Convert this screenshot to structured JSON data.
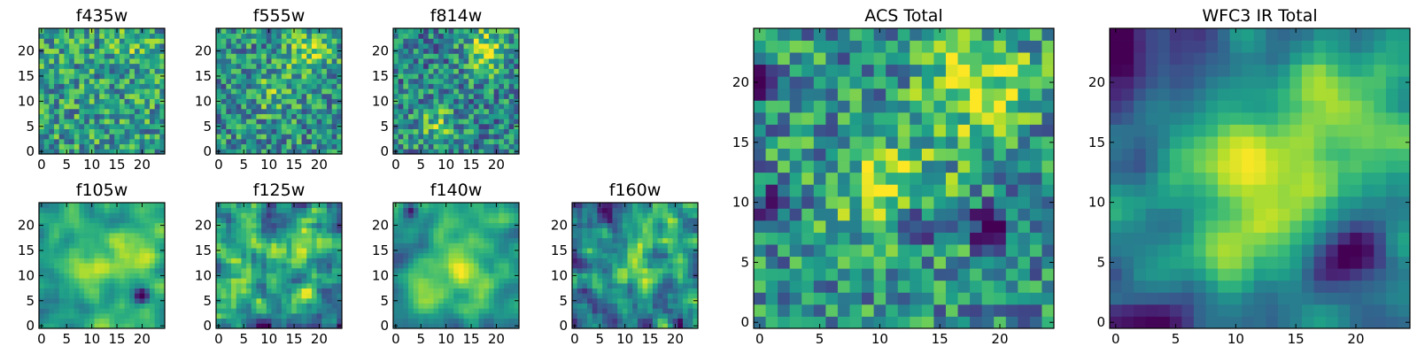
{
  "chart_data": [
    {
      "type": "heatmap",
      "title": "f435w",
      "xlim": [
        0,
        24
      ],
      "ylim": [
        0,
        24
      ],
      "xticks": [
        0,
        5,
        10,
        15,
        20
      ],
      "yticks": [
        0,
        5,
        10,
        15,
        20
      ],
      "colormap": "viridis",
      "grid_size": [
        25,
        25
      ],
      "brightness": "uniform noise, fairly bright overall"
    },
    {
      "type": "heatmap",
      "title": "f555w",
      "xlim": [
        0,
        24
      ],
      "ylim": [
        0,
        24
      ],
      "xticks": [
        0,
        5,
        10,
        15,
        20
      ],
      "yticks": [
        0,
        5,
        10,
        15,
        20
      ],
      "colormap": "viridis",
      "grid_size": [
        25,
        25
      ],
      "brightness": "uniform noise, bright patch near (18, 20)"
    },
    {
      "type": "heatmap",
      "title": "f814w",
      "xlim": [
        0,
        24
      ],
      "ylim": [
        0,
        24
      ],
      "xticks": [
        0,
        5,
        10,
        15,
        20
      ],
      "yticks": [
        0,
        5,
        10,
        15,
        20
      ],
      "colormap": "viridis",
      "grid_size": [
        25,
        25
      ],
      "brightness": "bright patch near (18, 20)"
    },
    {
      "type": "heatmap",
      "title": "f105w",
      "xlim": [
        0,
        24
      ],
      "ylim": [
        0,
        24
      ],
      "xticks": [
        0,
        5,
        10,
        15,
        20
      ],
      "yticks": [
        0,
        5,
        10,
        15,
        20
      ],
      "colormap": "viridis",
      "grid_size": [
        25,
        25
      ],
      "brightness": "smooth, bright centre, dark spot near (20, 6)"
    },
    {
      "type": "heatmap",
      "title": "f125w",
      "xlim": [
        0,
        24
      ],
      "ylim": [
        0,
        24
      ],
      "xticks": [
        0,
        5,
        10,
        15,
        20
      ],
      "yticks": [
        0,
        5,
        10,
        15,
        20
      ],
      "colormap": "viridis",
      "grid_size": [
        25,
        25
      ],
      "brightness": "smooth, moderately bright"
    },
    {
      "type": "heatmap",
      "title": "f140w",
      "xlim": [
        0,
        24
      ],
      "ylim": [
        0,
        24
      ],
      "xticks": [
        0,
        5,
        10,
        15,
        20
      ],
      "yticks": [
        0,
        5,
        10,
        15,
        20
      ],
      "colormap": "viridis",
      "grid_size": [
        25,
        25
      ],
      "brightness": "smooth, bright centre"
    },
    {
      "type": "heatmap",
      "title": "f160w",
      "xlim": [
        0,
        24
      ],
      "ylim": [
        0,
        24
      ],
      "xticks": [
        0,
        5,
        10,
        15,
        20
      ],
      "yticks": [
        0,
        5,
        10,
        15,
        20
      ],
      "colormap": "viridis",
      "grid_size": [
        25,
        25
      ],
      "brightness": "smooth, bright centre near (12, 12), darker edges"
    },
    {
      "type": "heatmap",
      "title": "ACS Total",
      "xlim": [
        0,
        24
      ],
      "ylim": [
        0,
        24
      ],
      "xticks": [
        0,
        5,
        10,
        15,
        20
      ],
      "yticks": [
        0,
        5,
        10,
        15,
        20
      ],
      "colormap": "viridis",
      "grid_size": [
        25,
        25
      ],
      "brightness": "bright peaks near (18, 20) and (11, 11)"
    },
    {
      "type": "heatmap",
      "title": "WFC3 IR Total",
      "xlim": [
        0,
        24
      ],
      "ylim": [
        0,
        24
      ],
      "xticks": [
        0,
        5,
        10,
        15,
        20
      ],
      "yticks": [
        0,
        5,
        10,
        15,
        20
      ],
      "colormap": "viridis",
      "grid_size": [
        25,
        25
      ],
      "brightness": "bright peaks near (12, 12) and (18, 19), dark top-left corner"
    }
  ]
}
